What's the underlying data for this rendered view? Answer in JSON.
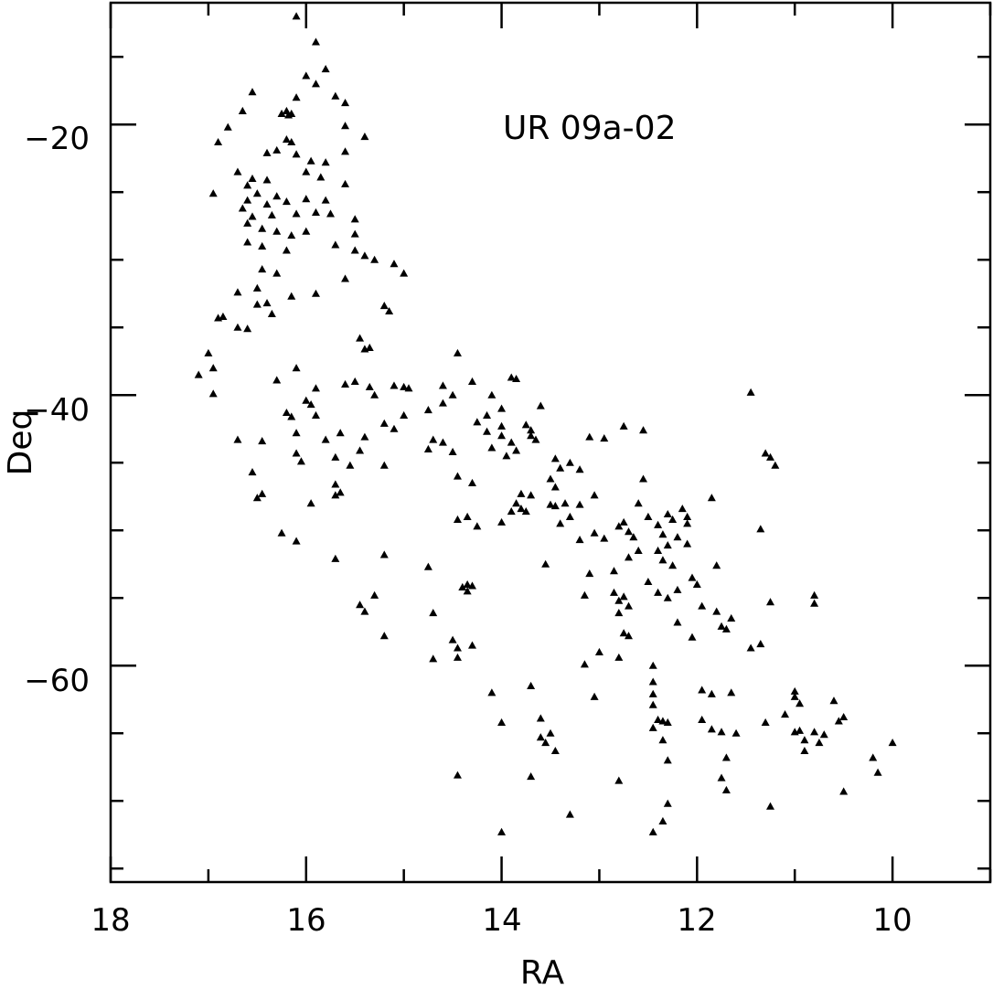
{
  "chart_data": {
    "type": "scatter",
    "title": "",
    "xlabel": "RA",
    "ylabel": "Deq",
    "annotation": "UR 09a-02",
    "xlim": [
      18,
      9
    ],
    "ylim": [
      -76,
      -11
    ],
    "x_ticks": [
      18,
      16,
      14,
      12,
      10
    ],
    "x_tick_labels": [
      "18",
      "16",
      "14",
      "12",
      "10"
    ],
    "y_ticks": [
      -20,
      -40,
      -60
    ],
    "y_tick_labels": [
      "−20",
      "−40",
      "−60"
    ],
    "grid": false,
    "marker": "triangle",
    "points": [
      [
        16.1,
        -12.0
      ],
      [
        15.9,
        -13.9
      ],
      [
        15.8,
        -15.9
      ],
      [
        16.0,
        -16.4
      ],
      [
        15.9,
        -17.0
      ],
      [
        16.55,
        -17.6
      ],
      [
        16.1,
        -18.0
      ],
      [
        15.7,
        -17.9
      ],
      [
        15.6,
        -18.4
      ],
      [
        16.65,
        -19.0
      ],
      [
        16.25,
        -19.2
      ],
      [
        16.2,
        -19.0
      ],
      [
        16.18,
        -19.3
      ],
      [
        16.15,
        -19.2
      ],
      [
        16.8,
        -20.2
      ],
      [
        15.6,
        -20.1
      ],
      [
        15.4,
        -20.9
      ],
      [
        16.9,
        -21.3
      ],
      [
        16.2,
        -21.1
      ],
      [
        16.15,
        -21.3
      ],
      [
        16.3,
        -21.9
      ],
      [
        16.4,
        -22.1
      ],
      [
        16.1,
        -22.2
      ],
      [
        15.6,
        -22.0
      ],
      [
        15.95,
        -22.7
      ],
      [
        15.8,
        -22.8
      ],
      [
        16.7,
        -23.5
      ],
      [
        16.55,
        -24.0
      ],
      [
        16.4,
        -24.1
      ],
      [
        16.0,
        -23.5
      ],
      [
        15.85,
        -23.9
      ],
      [
        16.6,
        -24.5
      ],
      [
        16.5,
        -25.1
      ],
      [
        16.3,
        -25.3
      ],
      [
        15.6,
        -24.4
      ],
      [
        16.95,
        -25.1
      ],
      [
        16.6,
        -25.6
      ],
      [
        16.4,
        -25.9
      ],
      [
        16.2,
        -25.7
      ],
      [
        16.0,
        -25.5
      ],
      [
        15.8,
        -25.6
      ],
      [
        16.65,
        -26.2
      ],
      [
        16.55,
        -26.8
      ],
      [
        16.35,
        -26.7
      ],
      [
        16.1,
        -26.6
      ],
      [
        15.9,
        -26.5
      ],
      [
        15.75,
        -26.6
      ],
      [
        15.5,
        -27.0
      ],
      [
        16.6,
        -27.3
      ],
      [
        16.45,
        -27.7
      ],
      [
        16.3,
        -27.9
      ],
      [
        16.15,
        -28.2
      ],
      [
        16.0,
        -27.9
      ],
      [
        15.5,
        -28.1
      ],
      [
        16.6,
        -28.7
      ],
      [
        16.45,
        -29.0
      ],
      [
        16.2,
        -29.3
      ],
      [
        15.7,
        -28.9
      ],
      [
        15.5,
        -29.3
      ],
      [
        15.4,
        -29.7
      ],
      [
        15.3,
        -30.0
      ],
      [
        15.1,
        -30.3
      ],
      [
        15.0,
        -31.0
      ],
      [
        16.45,
        -30.7
      ],
      [
        16.3,
        -31.0
      ],
      [
        15.6,
        -31.4
      ],
      [
        16.7,
        -32.4
      ],
      [
        16.5,
        -32.1
      ],
      [
        15.9,
        -32.5
      ],
      [
        16.15,
        -32.7
      ],
      [
        15.2,
        -33.4
      ],
      [
        16.4,
        -33.2
      ],
      [
        16.5,
        -33.3
      ],
      [
        16.35,
        -34.0
      ],
      [
        16.85,
        -34.2
      ],
      [
        16.9,
        -34.3
      ],
      [
        16.7,
        -35.0
      ],
      [
        16.6,
        -35.1
      ],
      [
        15.45,
        -35.8
      ],
      [
        15.35,
        -36.5
      ],
      [
        15.4,
        -36.6
      ],
      [
        15.15,
        -33.8
      ],
      [
        17.0,
        -36.9
      ],
      [
        17.1,
        -38.5
      ],
      [
        16.95,
        -38.0
      ],
      [
        16.3,
        -38.9
      ],
      [
        16.1,
        -38.0
      ],
      [
        15.9,
        -39.5
      ],
      [
        15.6,
        -39.2
      ],
      [
        15.5,
        -39.0
      ],
      [
        15.35,
        -39.4
      ],
      [
        15.3,
        -40.0
      ],
      [
        15.1,
        -39.3
      ],
      [
        15.0,
        -39.4
      ],
      [
        14.95,
        -39.5
      ],
      [
        16.95,
        -39.9
      ],
      [
        16.0,
        -40.4
      ],
      [
        15.95,
        -40.7
      ],
      [
        16.2,
        -41.3
      ],
      [
        16.15,
        -41.6
      ],
      [
        15.9,
        -41.5
      ],
      [
        15.0,
        -41.5
      ],
      [
        15.2,
        -42.1
      ],
      [
        15.1,
        -42.5
      ],
      [
        15.4,
        -43.1
      ],
      [
        15.65,
        -42.8
      ],
      [
        16.1,
        -42.8
      ],
      [
        16.45,
        -43.4
      ],
      [
        16.7,
        -43.3
      ],
      [
        15.8,
        -43.3
      ],
      [
        16.1,
        -44.3
      ],
      [
        16.05,
        -44.9
      ],
      [
        15.45,
        -44.1
      ],
      [
        15.7,
        -44.6
      ],
      [
        15.55,
        -45.2
      ],
      [
        15.2,
        -45.2
      ],
      [
        16.55,
        -45.7
      ],
      [
        15.7,
        -46.6
      ],
      [
        15.65,
        -47.2
      ],
      [
        15.7,
        -47.4
      ],
      [
        16.45,
        -47.3
      ],
      [
        16.5,
        -47.6
      ],
      [
        15.95,
        -48.0
      ],
      [
        16.25,
        -50.2
      ],
      [
        16.1,
        -50.8
      ],
      [
        15.7,
        -52.1
      ],
      [
        15.2,
        -51.8
      ],
      [
        15.3,
        -54.8
      ],
      [
        15.45,
        -55.5
      ],
      [
        15.4,
        -56.0
      ],
      [
        15.2,
        -57.8
      ],
      [
        14.7,
        -56.1
      ],
      [
        14.7,
        -59.5
      ],
      [
        14.5,
        -58.1
      ],
      [
        14.45,
        -58.7
      ],
      [
        14.45,
        -59.4
      ],
      [
        14.3,
        -58.5
      ],
      [
        14.75,
        -52.7
      ],
      [
        14.4,
        -54.2
      ],
      [
        14.35,
        -54.5
      ],
      [
        14.35,
        -54.0
      ],
      [
        14.3,
        -54.1
      ],
      [
        14.45,
        -68.1
      ],
      [
        14.1,
        -62.0
      ],
      [
        14.0,
        -64.2
      ],
      [
        14.0,
        -72.3
      ],
      [
        14.45,
        -36.9
      ],
      [
        14.3,
        -39.0
      ],
      [
        14.6,
        -39.3
      ],
      [
        14.5,
        -40.0
      ],
      [
        14.6,
        -40.6
      ],
      [
        14.75,
        -41.1
      ],
      [
        14.1,
        -40.0
      ],
      [
        14.0,
        -41.0
      ],
      [
        14.15,
        -41.5
      ],
      [
        14.25,
        -42.0
      ],
      [
        13.9,
        -38.7
      ],
      [
        13.85,
        -38.8
      ],
      [
        14.7,
        -43.3
      ],
      [
        14.6,
        -43.5
      ],
      [
        14.75,
        -44.0
      ],
      [
        14.5,
        -44.2
      ],
      [
        14.0,
        -42.3
      ],
      [
        14.0,
        -43.0
      ],
      [
        14.1,
        -43.9
      ],
      [
        14.15,
        -42.7
      ],
      [
        13.9,
        -43.5
      ],
      [
        13.85,
        -44.1
      ],
      [
        13.95,
        -44.5
      ],
      [
        13.75,
        -42.2
      ],
      [
        13.7,
        -42.6
      ],
      [
        13.7,
        -43.0
      ],
      [
        13.65,
        -43.3
      ],
      [
        13.6,
        -40.8
      ],
      [
        13.45,
        -44.7
      ],
      [
        13.4,
        -45.4
      ],
      [
        13.3,
        -45.0
      ],
      [
        13.2,
        -45.5
      ],
      [
        13.5,
        -46.2
      ],
      [
        13.45,
        -46.8
      ],
      [
        14.45,
        -46.0
      ],
      [
        14.3,
        -46.5
      ],
      [
        13.8,
        -47.3
      ],
      [
        13.7,
        -47.4
      ],
      [
        13.85,
        -48.0
      ],
      [
        13.8,
        -48.4
      ],
      [
        13.9,
        -48.6
      ],
      [
        13.75,
        -48.6
      ],
      [
        13.5,
        -48.1
      ],
      [
        13.45,
        -48.2
      ],
      [
        13.35,
        -48.0
      ],
      [
        13.2,
        -48.1
      ],
      [
        13.3,
        -49.0
      ],
      [
        13.05,
        -47.4
      ],
      [
        13.4,
        -49.5
      ],
      [
        14.35,
        -49.0
      ],
      [
        14.45,
        -49.2
      ],
      [
        14.25,
        -49.7
      ],
      [
        14.0,
        -49.4
      ],
      [
        13.05,
        -50.2
      ],
      [
        13.2,
        -50.7
      ],
      [
        13.55,
        -52.5
      ],
      [
        13.1,
        -53.2
      ],
      [
        13.15,
        -54.8
      ],
      [
        12.85,
        -53.0
      ],
      [
        12.85,
        -54.6
      ],
      [
        12.8,
        -55.2
      ],
      [
        12.75,
        -54.9
      ],
      [
        12.7,
        -55.6
      ],
      [
        12.75,
        -42.3
      ],
      [
        12.55,
        -42.6
      ],
      [
        12.95,
        -43.2
      ],
      [
        13.1,
        -43.1
      ],
      [
        12.55,
        -46.2
      ],
      [
        12.6,
        -48.0
      ],
      [
        12.5,
        -49.0
      ],
      [
        12.4,
        -49.6
      ],
      [
        12.3,
        -48.8
      ],
      [
        12.25,
        -49.2
      ],
      [
        12.15,
        -48.4
      ],
      [
        12.1,
        -49.0
      ],
      [
        12.1,
        -49.5
      ],
      [
        12.2,
        -50.5
      ],
      [
        12.1,
        -51.0
      ],
      [
        12.7,
        -50.1
      ],
      [
        12.65,
        -50.5
      ],
      [
        12.75,
        -49.4
      ],
      [
        12.8,
        -49.7
      ],
      [
        12.95,
        -50.6
      ],
      [
        12.6,
        -51.5
      ],
      [
        12.7,
        -52.0
      ],
      [
        12.35,
        -50.3
      ],
      [
        12.3,
        -51.1
      ],
      [
        12.4,
        -51.5
      ],
      [
        12.35,
        -52.2
      ],
      [
        12.25,
        -52.6
      ],
      [
        12.5,
        -53.8
      ],
      [
        12.4,
        -54.6
      ],
      [
        12.3,
        -55.0
      ],
      [
        12.2,
        -54.4
      ],
      [
        12.05,
        -53.5
      ],
      [
        12.0,
        -54.0
      ],
      [
        11.95,
        -55.6
      ],
      [
        12.2,
        -56.8
      ],
      [
        12.05,
        -57.9
      ],
      [
        12.8,
        -56.1
      ],
      [
        12.75,
        -57.6
      ],
      [
        12.7,
        -57.8
      ],
      [
        12.8,
        -59.4
      ],
      [
        13.0,
        -59.0
      ],
      [
        13.15,
        -59.9
      ],
      [
        13.05,
        -62.3
      ],
      [
        12.45,
        -60.0
      ],
      [
        12.45,
        -61.2
      ],
      [
        12.45,
        -62.1
      ],
      [
        12.45,
        -62.9
      ],
      [
        12.4,
        -64.0
      ],
      [
        12.35,
        -64.1
      ],
      [
        12.35,
        -65.5
      ],
      [
        12.45,
        -64.6
      ],
      [
        12.3,
        -64.2
      ],
      [
        12.3,
        -67.0
      ],
      [
        12.3,
        -70.2
      ],
      [
        12.35,
        -71.5
      ],
      [
        12.45,
        -72.3
      ],
      [
        11.95,
        -61.8
      ],
      [
        11.85,
        -62.1
      ],
      [
        11.95,
        -64.0
      ],
      [
        11.85,
        -64.7
      ],
      [
        11.75,
        -64.9
      ],
      [
        11.8,
        -56.0
      ],
      [
        11.75,
        -57.1
      ],
      [
        11.7,
        -57.3
      ],
      [
        11.65,
        -56.5
      ],
      [
        11.8,
        -52.6
      ],
      [
        11.85,
        -47.6
      ],
      [
        11.45,
        -39.8
      ],
      [
        11.3,
        -44.3
      ],
      [
        11.25,
        -44.6
      ],
      [
        11.2,
        -45.2
      ],
      [
        11.35,
        -49.9
      ],
      [
        11.25,
        -55.3
      ],
      [
        11.35,
        -58.4
      ],
      [
        11.45,
        -58.7
      ],
      [
        11.3,
        -64.2
      ],
      [
        11.6,
        -65.0
      ],
      [
        11.7,
        -66.8
      ],
      [
        11.75,
        -68.3
      ],
      [
        11.7,
        -69.2
      ],
      [
        11.25,
        -70.4
      ],
      [
        11.65,
        -62.0
      ],
      [
        11.0,
        -61.9
      ],
      [
        11.0,
        -62.3
      ],
      [
        10.95,
        -62.8
      ],
      [
        11.1,
        -63.6
      ],
      [
        11.0,
        -64.9
      ],
      [
        10.9,
        -65.5
      ],
      [
        10.9,
        -66.3
      ],
      [
        10.95,
        -64.8
      ],
      [
        10.8,
        -64.9
      ],
      [
        10.75,
        -65.7
      ],
      [
        10.7,
        -65.1
      ],
      [
        10.8,
        -54.8
      ],
      [
        10.8,
        -55.4
      ],
      [
        10.6,
        -62.6
      ],
      [
        10.55,
        -64.1
      ],
      [
        10.5,
        -63.8
      ],
      [
        10.5,
        -69.3
      ],
      [
        10.2,
        -66.8
      ],
      [
        10.15,
        -67.9
      ],
      [
        10.0,
        -65.7
      ],
      [
        13.7,
        -61.5
      ],
      [
        13.6,
        -63.9
      ],
      [
        13.6,
        -65.3
      ],
      [
        13.5,
        -65.0
      ],
      [
        13.55,
        -65.7
      ],
      [
        13.45,
        -66.3
      ],
      [
        13.7,
        -68.2
      ],
      [
        13.3,
        -71.0
      ],
      [
        12.8,
        -68.5
      ]
    ]
  }
}
